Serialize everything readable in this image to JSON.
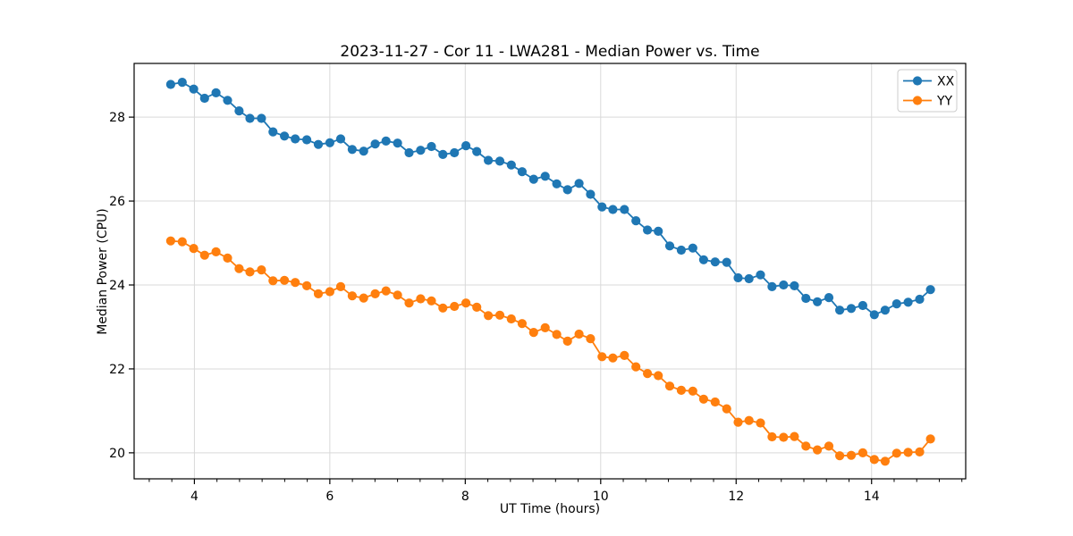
{
  "chart_data": {
    "type": "line",
    "title": "2023-11-27 - Cor 11 - LWA281 - Median Power vs. Time",
    "xlabel": "UT Time (hours)",
    "ylabel": "Median Power (CPU)",
    "xlim": [
      3.11,
      15.39
    ],
    "ylim": [
      19.38,
      29.28
    ],
    "xticks": [
      4,
      6,
      8,
      10,
      12,
      14
    ],
    "yticks": [
      20,
      22,
      24,
      26,
      28
    ],
    "x_minor_tick_step_hours": 0.3333,
    "grid": true,
    "background": "#ffffff",
    "grid_color": "#d9d9d9",
    "spine_color": "#000000",
    "legend": {
      "position": "upper right",
      "border_color": "#cccccc",
      "items": [
        {
          "label": "XX",
          "color": "#1f77b4",
          "swatch": "line-circle-marker"
        },
        {
          "label": "YY",
          "color": "#ff7f0e",
          "swatch": "line-circle-marker"
        }
      ]
    },
    "marker": "circle",
    "x": [
      3.65,
      3.82,
      3.99,
      4.15,
      4.32,
      4.49,
      4.66,
      4.82,
      4.99,
      5.16,
      5.33,
      5.49,
      5.66,
      5.83,
      6.0,
      6.16,
      6.33,
      6.5,
      6.67,
      6.83,
      7.0,
      7.17,
      7.34,
      7.5,
      7.67,
      7.84,
      8.01,
      8.17,
      8.34,
      8.51,
      8.68,
      8.84,
      9.01,
      9.18,
      9.35,
      9.51,
      9.68,
      9.85,
      10.02,
      10.18,
      10.35,
      10.52,
      10.69,
      10.85,
      11.02,
      11.19,
      11.36,
      11.52,
      11.69,
      11.86,
      12.03,
      12.19,
      12.36,
      12.53,
      12.7,
      12.86,
      13.03,
      13.2,
      13.37,
      13.53,
      13.7,
      13.87,
      14.04,
      14.2,
      14.37,
      14.54,
      14.71,
      14.87
    ],
    "series": [
      {
        "name": "XX",
        "color": "#1f77b4",
        "values": [
          28.78,
          28.83,
          28.67,
          28.45,
          28.58,
          28.4,
          28.15,
          27.97,
          27.97,
          27.65,
          27.55,
          27.48,
          27.46,
          27.35,
          27.39,
          27.48,
          27.23,
          27.19,
          27.36,
          27.43,
          27.38,
          27.15,
          27.21,
          27.3,
          27.11,
          27.15,
          27.32,
          27.18,
          26.97,
          26.95,
          26.86,
          26.7,
          26.52,
          26.59,
          26.41,
          26.27,
          26.42,
          26.16,
          25.86,
          25.8,
          25.8,
          25.53,
          25.31,
          25.28,
          24.93,
          24.83,
          24.88,
          24.6,
          24.55,
          24.54,
          24.17,
          24.15,
          24.24,
          23.96,
          24.0,
          23.98,
          23.68,
          23.6,
          23.7,
          23.4,
          23.44,
          23.51,
          23.29,
          23.4,
          23.55,
          23.59,
          23.66,
          23.89
        ]
      },
      {
        "name": "YY",
        "color": "#ff7f0e",
        "values": [
          25.05,
          25.03,
          24.87,
          24.71,
          24.79,
          24.64,
          24.39,
          24.31,
          24.36,
          24.1,
          24.11,
          24.06,
          23.98,
          23.79,
          23.84,
          23.96,
          23.74,
          23.69,
          23.79,
          23.86,
          23.76,
          23.57,
          23.67,
          23.62,
          23.45,
          23.49,
          23.57,
          23.47,
          23.27,
          23.28,
          23.19,
          23.08,
          22.87,
          22.98,
          22.82,
          22.66,
          22.83,
          22.72,
          22.29,
          22.26,
          22.32,
          22.05,
          21.89,
          21.84,
          21.59,
          21.49,
          21.47,
          21.28,
          21.21,
          21.05,
          20.73,
          20.77,
          20.71,
          20.38,
          20.37,
          20.39,
          20.16,
          20.07,
          20.16,
          19.93,
          19.94,
          20.0,
          19.84,
          19.8,
          19.99,
          20.01,
          20.02,
          20.33
        ]
      }
    ]
  }
}
